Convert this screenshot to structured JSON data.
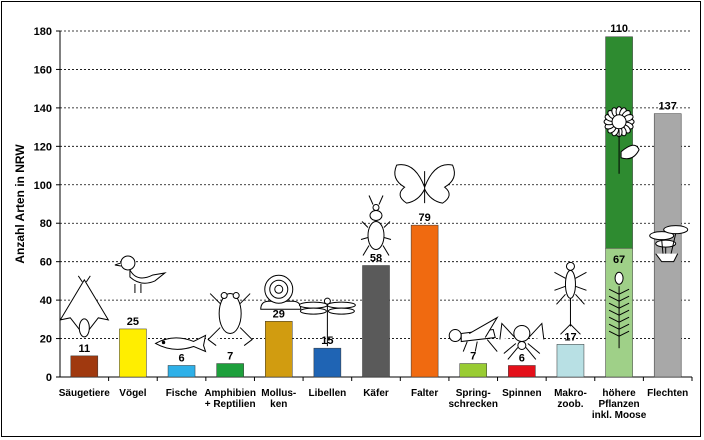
{
  "chart_data": {
    "type": "bar",
    "ylabel": "Anzahl Arten in NRW",
    "ylim": [
      0,
      180
    ],
    "yticks": [
      0,
      20,
      40,
      60,
      80,
      100,
      120,
      140,
      160,
      180
    ],
    "grid": true,
    "categories": [
      {
        "label": [
          "Säugetiere"
        ],
        "value": 11,
        "color": "#a0390f",
        "icon": "bat-icon"
      },
      {
        "label": [
          "Vögel"
        ],
        "value": 25,
        "color": "#ffee00",
        "icon": "bird-icon"
      },
      {
        "label": [
          "Fische"
        ],
        "value": 6,
        "color": "#2eb0e8",
        "icon": "fish-icon"
      },
      {
        "label": [
          "Amphibien",
          "+ Reptilien"
        ],
        "value": 7,
        "color": "#1ea03c",
        "icon": "frog-icon"
      },
      {
        "label": [
          "Mollus-",
          "ken"
        ],
        "value": 29,
        "color": "#d19c10",
        "icon": "snail-icon"
      },
      {
        "label": [
          "Libellen"
        ],
        "value": 15,
        "color": "#1f64b4",
        "icon": "dragonfly-icon"
      },
      {
        "label": [
          "Käfer"
        ],
        "value": 58,
        "color": "#5a5a5a",
        "icon": "beetle-icon"
      },
      {
        "label": [
          "Falter"
        ],
        "value": 79,
        "color": "#f06a10",
        "icon": "butterfly-icon"
      },
      {
        "label": [
          "Spring-",
          "schrecken"
        ],
        "value": 7,
        "color": "#99cc33",
        "icon": "grasshopper-icon"
      },
      {
        "label": [
          "Spinnen"
        ],
        "value": 6,
        "color": "#e4101a",
        "icon": "spider-icon"
      },
      {
        "label": [
          "Makro-",
          "zoob."
        ],
        "value": 17,
        "color": "#b8e0e4",
        "icon": "mayfly-icon"
      },
      {
        "label": [
          "höhere",
          "Pflanzen",
          "inkl. Moose"
        ],
        "value": 177,
        "color": "#2e8b30",
        "segments": [
          {
            "value": 67,
            "color": "#9fd088",
            "label": "67"
          },
          {
            "value": 110,
            "color": "#2e8b30",
            "label": "110"
          }
        ],
        "icon": "flower-icon"
      },
      {
        "label": [
          "Flechten"
        ],
        "value": 137,
        "color": "#a8a8a8",
        "icon": "lichen-icon"
      }
    ]
  }
}
